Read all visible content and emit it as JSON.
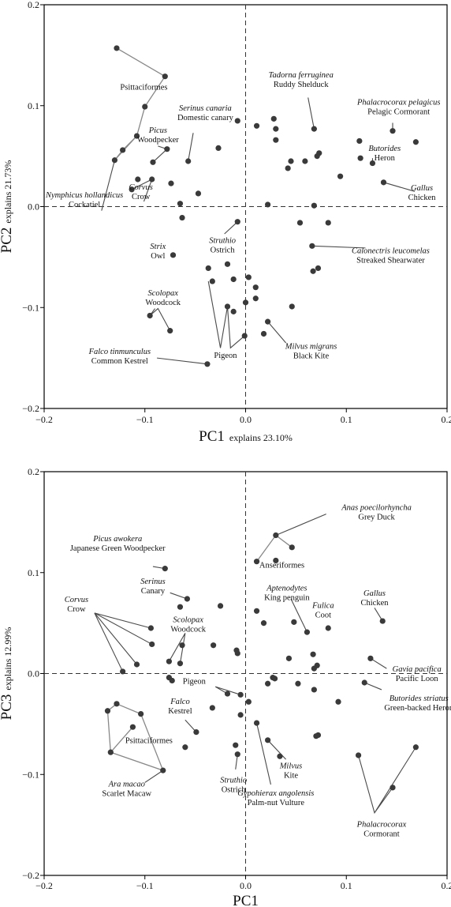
{
  "colors": {
    "point": "#3a3a3a",
    "leader": "#4a4a4a",
    "hull": "#888888",
    "frame": "#000000"
  },
  "chart_data": [
    {
      "type": "scatter",
      "xlabel": "PC1",
      "xlabel_note": "explains 23.10%",
      "ylabel": "PC2",
      "ylabel_note": "explains 21.73%",
      "xlim": [
        -0.2,
        0.2
      ],
      "ylim": [
        -0.2,
        0.2
      ],
      "xticks": [
        "−0.2",
        "−0.1",
        "0.0",
        "0.1",
        "0.2"
      ],
      "yticks": [
        "−0.2",
        "−0.1",
        "0.0",
        "0.1",
        "0.2"
      ],
      "zero_lines": "dashed",
      "points": [
        [
          -0.128,
          0.157
        ],
        [
          -0.08,
          0.129
        ],
        [
          -0.1,
          0.099
        ],
        [
          -0.108,
          0.07
        ],
        [
          -0.122,
          0.056
        ],
        [
          -0.13,
          0.046
        ],
        [
          -0.078,
          0.057
        ],
        [
          -0.092,
          0.044
        ],
        [
          -0.093,
          0.027
        ],
        [
          -0.107,
          0.027
        ],
        [
          -0.113,
          0.017
        ],
        [
          -0.074,
          0.023
        ],
        [
          -0.065,
          0.003
        ],
        [
          -0.063,
          -0.011
        ],
        [
          -0.057,
          0.045
        ],
        [
          -0.047,
          0.013
        ],
        [
          -0.027,
          0.058
        ],
        [
          -0.008,
          0.085
        ],
        [
          0.011,
          0.08
        ],
        [
          0.028,
          0.087
        ],
        [
          0.03,
          0.077
        ],
        [
          0.03,
          0.066
        ],
        [
          0.042,
          0.038
        ],
        [
          0.045,
          0.045
        ],
        [
          0.059,
          0.045
        ],
        [
          0.068,
          0.077
        ],
        [
          0.071,
          0.05
        ],
        [
          0.073,
          0.053
        ],
        [
          0.094,
          0.03
        ],
        [
          0.113,
          0.065
        ],
        [
          0.114,
          0.048
        ],
        [
          0.126,
          0.043
        ],
        [
          0.146,
          0.075
        ],
        [
          0.169,
          0.064
        ],
        [
          0.137,
          0.024
        ],
        [
          0.022,
          0.002
        ],
        [
          0.068,
          0.001
        ],
        [
          0.082,
          -0.016
        ],
        [
          0.054,
          -0.016
        ],
        [
          0.066,
          -0.039
        ],
        [
          0.072,
          -0.061
        ],
        [
          0.067,
          -0.064
        ],
        [
          -0.008,
          -0.015
        ],
        [
          -0.037,
          -0.061
        ],
        [
          -0.018,
          -0.057
        ],
        [
          -0.012,
          -0.072
        ],
        [
          -0.033,
          -0.074
        ],
        [
          0.003,
          -0.07
        ],
        [
          0.01,
          -0.08
        ],
        [
          0.01,
          -0.091
        ],
        [
          -0.018,
          -0.099
        ],
        [
          -0.012,
          -0.104
        ],
        [
          0.0,
          -0.095
        ],
        [
          0.022,
          -0.114
        ],
        [
          0.018,
          -0.126
        ],
        [
          0.046,
          -0.099
        ],
        [
          -0.001,
          -0.128
        ],
        [
          -0.038,
          -0.156
        ],
        [
          -0.095,
          -0.108
        ],
        [
          -0.075,
          -0.123
        ],
        [
          -0.072,
          -0.048
        ]
      ],
      "hulls": [
        [
          [
            -0.128,
            0.157
          ],
          [
            -0.08,
            0.129
          ],
          [
            -0.1,
            0.099
          ],
          [
            -0.108,
            0.07
          ],
          [
            -0.13,
            0.046
          ]
        ],
        [
          [
            -0.13,
            0.046
          ],
          [
            -0.122,
            0.056
          ],
          [
            -0.108,
            0.07
          ]
        ]
      ],
      "labels": [
        {
          "common": "Psittaciformes",
          "x": -0.101,
          "y": 0.116,
          "anchor": "middle",
          "p": []
        },
        {
          "genus": "Serinus canaria",
          "common": "Domestic canary",
          "x": -0.04,
          "y": 0.095,
          "anchor": "middle",
          "line": [
            -0.052,
            0.073,
            -0.057,
            0.045
          ],
          "p": []
        },
        {
          "genus": "Picus",
          "common": "Woodpecker",
          "x": -0.087,
          "y": 0.073,
          "anchor": "middle",
          "line": [
            -0.087,
            0.06,
            -0.078,
            0.057,
            -0.092,
            0.044
          ],
          "p": []
        },
        {
          "genus": "Corvus",
          "common": "Crow",
          "x": -0.104,
          "y": 0.017,
          "anchor": "middle",
          "line": [
            -0.101,
            0.005,
            -0.093,
            0.027,
            -0.113,
            0.017
          ],
          "p": []
        },
        {
          "genus": "Nymphicus hollandicus",
          "common": "Cockatiel",
          "x": -0.16,
          "y": 0.009,
          "anchor": "middle",
          "line": [
            -0.143,
            -0.004,
            -0.13,
            0.046
          ],
          "p": []
        },
        {
          "genus": "Tadorna ferruginea",
          "common": "Ruddy Shelduck",
          "x": 0.055,
          "y": 0.128,
          "anchor": "middle",
          "line": [
            0.062,
            0.108,
            0.068,
            0.077
          ],
          "p": []
        },
        {
          "genus": "Phalacrocorax pelagicus",
          "common": "Pelagic Cormorant",
          "x": 0.152,
          "y": 0.101,
          "anchor": "middle",
          "line": [
            0.146,
            0.083,
            0.146,
            0.075
          ],
          "p": []
        },
        {
          "genus": "Butorides",
          "common": "Heron",
          "x": 0.138,
          "y": 0.055,
          "anchor": "middle",
          "line": [
            0.126,
            0.048,
            0.126,
            0.043
          ],
          "p": []
        },
        {
          "genus": "Gallus",
          "common": "Chicken",
          "x": 0.175,
          "y": 0.016,
          "anchor": "middle",
          "line": [
            0.168,
            0.015,
            0.137,
            0.024
          ],
          "p": []
        },
        {
          "genus": "Strix",
          "common": "Owl",
          "x": -0.087,
          "y": -0.042,
          "anchor": "middle",
          "p": []
        },
        {
          "genus": "Struthio",
          "common": "Ostrich",
          "x": -0.023,
          "y": -0.036,
          "anchor": "middle",
          "line": [
            -0.021,
            -0.027,
            -0.008,
            -0.015
          ],
          "p": []
        },
        {
          "genus": "Calonectris leucomelas",
          "common": "Streaked Shearwater",
          "x": 0.144,
          "y": -0.046,
          "anchor": "middle",
          "line": [
            0.119,
            -0.041,
            0.066,
            -0.039
          ],
          "p": []
        },
        {
          "genus": "Scolopax",
          "common": "Woodcock",
          "x": -0.082,
          "y": -0.088,
          "anchor": "middle",
          "line": [
            -0.09,
            -0.101,
            -0.095,
            -0.108,
            -0.087,
            -0.101,
            -0.075,
            -0.123
          ],
          "p": []
        },
        {
          "common": "Pigeon",
          "x": -0.02,
          "y": -0.15,
          "anchor": "middle",
          "line": [
            -0.025,
            -0.14,
            -0.037,
            -0.074,
            -0.025,
            -0.14,
            -0.018,
            -0.099,
            -0.015,
            -0.14,
            -0.001,
            -0.128
          ],
          "p": []
        },
        {
          "genus": "Falco tinmunculus",
          "common": "Common Kestrel",
          "x": -0.125,
          "y": -0.146,
          "anchor": "middle",
          "line": [
            -0.088,
            -0.15,
            -0.038,
            -0.156
          ],
          "p": []
        },
        {
          "genus": "Milvus migrans",
          "common": "Black Kite",
          "x": 0.065,
          "y": -0.141,
          "anchor": "middle",
          "line": [
            0.04,
            -0.135,
            0.022,
            -0.114
          ],
          "p": []
        }
      ]
    },
    {
      "type": "scatter",
      "xlabel": "PC1",
      "ylabel": "PC3",
      "ylabel_note": "explains 12.99%",
      "xlim": [
        -0.2,
        0.2
      ],
      "ylim": [
        -0.2,
        0.2
      ],
      "xticks": [
        "−0.2",
        "−0.1",
        "0.0",
        "0.1",
        "0.2"
      ],
      "yticks": [
        "−0.2",
        "−0.1",
        "0.0",
        "0.1",
        "0.2"
      ],
      "zero_lines": "dashed",
      "points": [
        [
          0.03,
          0.137
        ],
        [
          0.046,
          0.125
        ],
        [
          0.011,
          0.111
        ],
        [
          0.03,
          0.112
        ],
        [
          -0.08,
          0.104
        ],
        [
          -0.058,
          0.074
        ],
        [
          -0.065,
          0.066
        ],
        [
          -0.025,
          0.067
        ],
        [
          -0.094,
          0.045
        ],
        [
          -0.093,
          0.029
        ],
        [
          -0.063,
          0.028
        ],
        [
          -0.076,
          0.012
        ],
        [
          -0.065,
          0.01
        ],
        [
          -0.108,
          0.009
        ],
        [
          -0.122,
          0.002
        ],
        [
          -0.032,
          0.028
        ],
        [
          -0.009,
          0.023
        ],
        [
          -0.008,
          0.02
        ],
        [
          0.011,
          0.062
        ],
        [
          0.018,
          0.05
        ],
        [
          0.048,
          0.051
        ],
        [
          0.061,
          0.041
        ],
        [
          0.082,
          0.045
        ],
        [
          0.136,
          0.052
        ],
        [
          0.124,
          0.015
        ],
        [
          0.043,
          0.015
        ],
        [
          0.067,
          0.019
        ],
        [
          0.068,
          0.005
        ],
        [
          0.071,
          0.008
        ],
        [
          0.027,
          -0.004
        ],
        [
          0.029,
          -0.005
        ],
        [
          0.022,
          -0.01
        ],
        [
          0.052,
          -0.01
        ],
        [
          0.068,
          -0.016
        ],
        [
          0.092,
          -0.028
        ],
        [
          0.118,
          -0.009
        ],
        [
          -0.076,
          -0.004
        ],
        [
          -0.073,
          -0.007
        ],
        [
          -0.018,
          -0.02
        ],
        [
          -0.005,
          -0.021
        ],
        [
          -0.033,
          -0.034
        ],
        [
          0.003,
          -0.028
        ],
        [
          -0.005,
          -0.041
        ],
        [
          0.011,
          -0.049
        ],
        [
          -0.049,
          -0.058
        ],
        [
          -0.06,
          -0.073
        ],
        [
          -0.01,
          -0.071
        ],
        [
          -0.008,
          -0.08
        ],
        [
          0.022,
          -0.066
        ],
        [
          0.034,
          -0.082
        ],
        [
          0.07,
          -0.062
        ],
        [
          0.072,
          -0.061
        ],
        [
          0.112,
          -0.081
        ],
        [
          0.169,
          -0.073
        ],
        [
          0.146,
          -0.113
        ],
        [
          -0.128,
          -0.03
        ],
        [
          -0.137,
          -0.037
        ],
        [
          -0.104,
          -0.04
        ],
        [
          -0.112,
          -0.053
        ],
        [
          -0.134,
          -0.078
        ],
        [
          -0.082,
          -0.096
        ]
      ],
      "hulls": [
        [
          [
            0.011,
            0.111
          ],
          [
            0.03,
            0.137
          ],
          [
            0.046,
            0.125
          ]
        ],
        [
          [
            -0.128,
            -0.03
          ],
          [
            -0.137,
            -0.037
          ],
          [
            -0.134,
            -0.078
          ],
          [
            -0.082,
            -0.096
          ],
          [
            -0.104,
            -0.04
          ],
          [
            -0.128,
            -0.03
          ]
        ],
        [
          [
            -0.134,
            -0.078
          ],
          [
            -0.112,
            -0.053
          ]
        ]
      ],
      "labels": [
        {
          "genus": "Anas poecilorhyncha",
          "common": "Grey Duck",
          "x": 0.13,
          "y": 0.162,
          "anchor": "middle",
          "line": [
            0.08,
            0.158,
            0.03,
            0.137
          ],
          "p": []
        },
        {
          "common": "Anseriformes",
          "x": 0.036,
          "y": 0.105,
          "anchor": "middle",
          "p": []
        },
        {
          "genus": "Picus awokera",
          "common": "Japanese Green Woodpecker",
          "x": -0.127,
          "y": 0.131,
          "anchor": "middle",
          "line": [
            -0.092,
            0.106,
            -0.08,
            0.104
          ],
          "p": []
        },
        {
          "genus": "Serinus",
          "common": "Canary",
          "x": -0.092,
          "y": 0.089,
          "anchor": "middle",
          "line": [
            -0.075,
            0.08,
            -0.058,
            0.074
          ],
          "p": []
        },
        {
          "genus": "Corvus",
          "common": "Crow",
          "x": -0.168,
          "y": 0.071,
          "anchor": "middle",
          "line": [
            -0.15,
            0.06,
            -0.094,
            0.045,
            -0.15,
            0.06,
            -0.093,
            0.029,
            -0.15,
            0.06,
            -0.108,
            0.009,
            -0.15,
            0.06,
            -0.122,
            0.002
          ],
          "p": []
        },
        {
          "genus": "Scolopax",
          "common": "Woodcock",
          "x": -0.057,
          "y": 0.051,
          "anchor": "middle",
          "line": [
            -0.06,
            0.04,
            -0.076,
            0.012,
            -0.06,
            0.04,
            -0.065,
            0.01
          ],
          "p": []
        },
        {
          "genus": "Aptenodytes",
          "common": "King penguin",
          "x": 0.041,
          "y": 0.082,
          "anchor": "middle",
          "line": [
            0.045,
            0.074,
            0.061,
            0.041
          ],
          "p": []
        },
        {
          "genus": "Fulica",
          "common": "Coot",
          "x": 0.077,
          "y": 0.065,
          "anchor": "middle",
          "p": []
        },
        {
          "genus": "Gallus",
          "common": "Chicken",
          "x": 0.128,
          "y": 0.077,
          "anchor": "middle",
          "line": [
            0.128,
            0.065,
            0.136,
            0.052
          ],
          "p": []
        },
        {
          "genus": "Gavia pacifica",
          "common": "Pacific Loon",
          "x": 0.17,
          "y": 0.002,
          "anchor": "middle",
          "line": [
            0.14,
            0.005,
            0.124,
            0.015
          ],
          "p": []
        },
        {
          "genus": "Butorides striatus",
          "common": "Green-backed Heron",
          "x": 0.172,
          "y": -0.027,
          "anchor": "middle",
          "line": [
            0.135,
            -0.016,
            0.118,
            -0.009
          ],
          "p": []
        },
        {
          "common": "Pigeon",
          "x": -0.051,
          "y": -0.01,
          "anchor": "middle",
          "line": [
            -0.03,
            -0.013,
            -0.018,
            -0.02,
            -0.03,
            -0.013,
            -0.005,
            -0.021
          ],
          "p": []
        },
        {
          "genus": "Falco",
          "common": "Kestrel",
          "x": -0.065,
          "y": -0.03,
          "anchor": "middle",
          "line": [
            -0.06,
            -0.046,
            -0.049,
            -0.058
          ],
          "p": []
        },
        {
          "common": "Psittaciformes",
          "x": -0.096,
          "y": -0.069,
          "anchor": "middle",
          "p": []
        },
        {
          "genus": "Ara macao",
          "common": "Scarlet Macaw",
          "x": -0.118,
          "y": -0.112,
          "anchor": "middle",
          "line": [
            -0.1,
            -0.108,
            -0.082,
            -0.096
          ],
          "p": []
        },
        {
          "genus": "Struthio",
          "common": "Ostrich",
          "x": -0.012,
          "y": -0.108,
          "anchor": "middle",
          "line": [
            -0.01,
            -0.095,
            -0.008,
            -0.08
          ],
          "p": []
        },
        {
          "genus": "Milvus",
          "common": "Kite",
          "x": 0.045,
          "y": -0.094,
          "anchor": "middle",
          "line": [
            0.04,
            -0.085,
            0.022,
            -0.066
          ],
          "p": []
        },
        {
          "genus": "Gypohierax angolensis",
          "common": "Palm-nut Vulture",
          "x": 0.03,
          "y": -0.121,
          "anchor": "middle",
          "line": [
            0.025,
            -0.11,
            0.011,
            -0.049
          ],
          "p": []
        },
        {
          "genus": "Phalacrocorax",
          "common": "Cormorant",
          "x": 0.135,
          "y": -0.152,
          "anchor": "middle",
          "line": [
            0.128,
            -0.138,
            0.112,
            -0.081,
            0.128,
            -0.138,
            0.169,
            -0.073,
            0.128,
            -0.138,
            0.146,
            -0.113
          ],
          "p": []
        }
      ]
    }
  ]
}
